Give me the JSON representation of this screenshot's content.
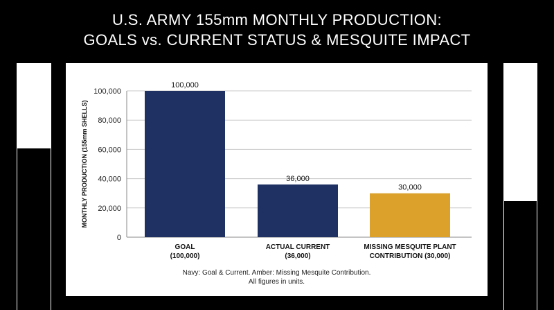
{
  "header": {
    "title_line1": "U.S. ARMY 155mm MONTHLY PRODUCTION:",
    "title_line2": "GOALS vs. CURRENT STATUS & MESQUITE IMPACT"
  },
  "footnote": {
    "line1": "Navy: Goal & Current. Amber: Missing Mesquite Contribution.",
    "line2": "All figures in units."
  },
  "colors": {
    "navy": "#1f3163",
    "amber": "#dba12b",
    "grid": "#c8c8c8",
    "axis": "#888888"
  },
  "chart_data": {
    "type": "bar",
    "ylabel": "MONTHLY PRODUCTION (155mm SHELLS)",
    "ylim": [
      0,
      100000
    ],
    "yticks": [
      0,
      20000,
      40000,
      60000,
      80000,
      100000
    ],
    "ytick_labels": [
      "0",
      "20,000",
      "40,000",
      "60,000",
      "80,000",
      "100,000"
    ],
    "grid": true,
    "categories": [
      [
        "GOAL",
        "(100,000)"
      ],
      [
        "ACTUAL CURRENT",
        "(36,000)"
      ],
      [
        "MISSING MESQUITE PLANT",
        "CONTRIBUTION (30,000)"
      ]
    ],
    "values": [
      100000,
      36000,
      30000
    ],
    "value_labels": [
      "100,000",
      "36,000",
      "30,000"
    ],
    "bar_colors": [
      "navy",
      "navy",
      "amber"
    ]
  }
}
